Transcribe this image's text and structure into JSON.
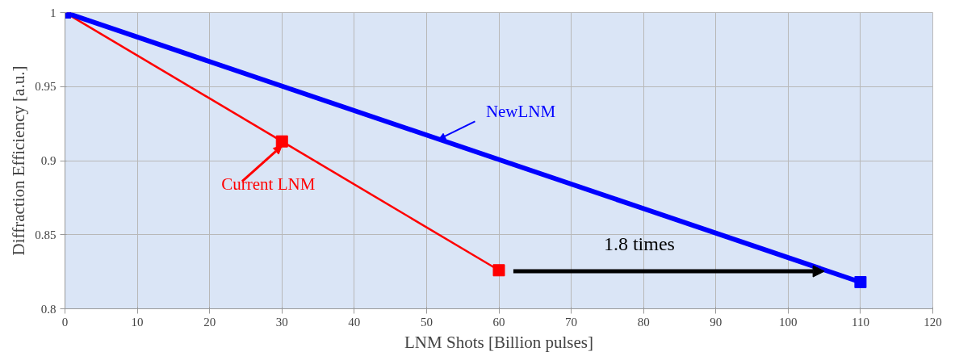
{
  "chart_data": {
    "type": "line",
    "xlabel": "LNM Shots [Billion pulses]",
    "ylabel": "Diffraction Efficiency [a.u.]",
    "series": [
      {
        "name": "Current LNM",
        "color": "#ff0000",
        "x": [
          0,
          30,
          60
        ],
        "values": [
          1,
          0.913,
          0.826
        ]
      },
      {
        "name": "NewLNM",
        "color": "#0000ff",
        "x": [
          0,
          110
        ],
        "values": [
          1,
          0.818
        ]
      }
    ],
    "annotations": [
      "1.8 times"
    ],
    "xlim": [
      0,
      120
    ],
    "xticks": [
      0,
      10,
      20,
      30,
      40,
      50,
      60,
      70,
      80,
      90,
      100,
      110,
      120
    ],
    "ylim": [
      0.8,
      1
    ],
    "yticks": [
      0.8,
      0.85,
      0.9,
      0.95,
      1
    ],
    "grid": true,
    "marker": "square",
    "line_style": "solid"
  }
}
